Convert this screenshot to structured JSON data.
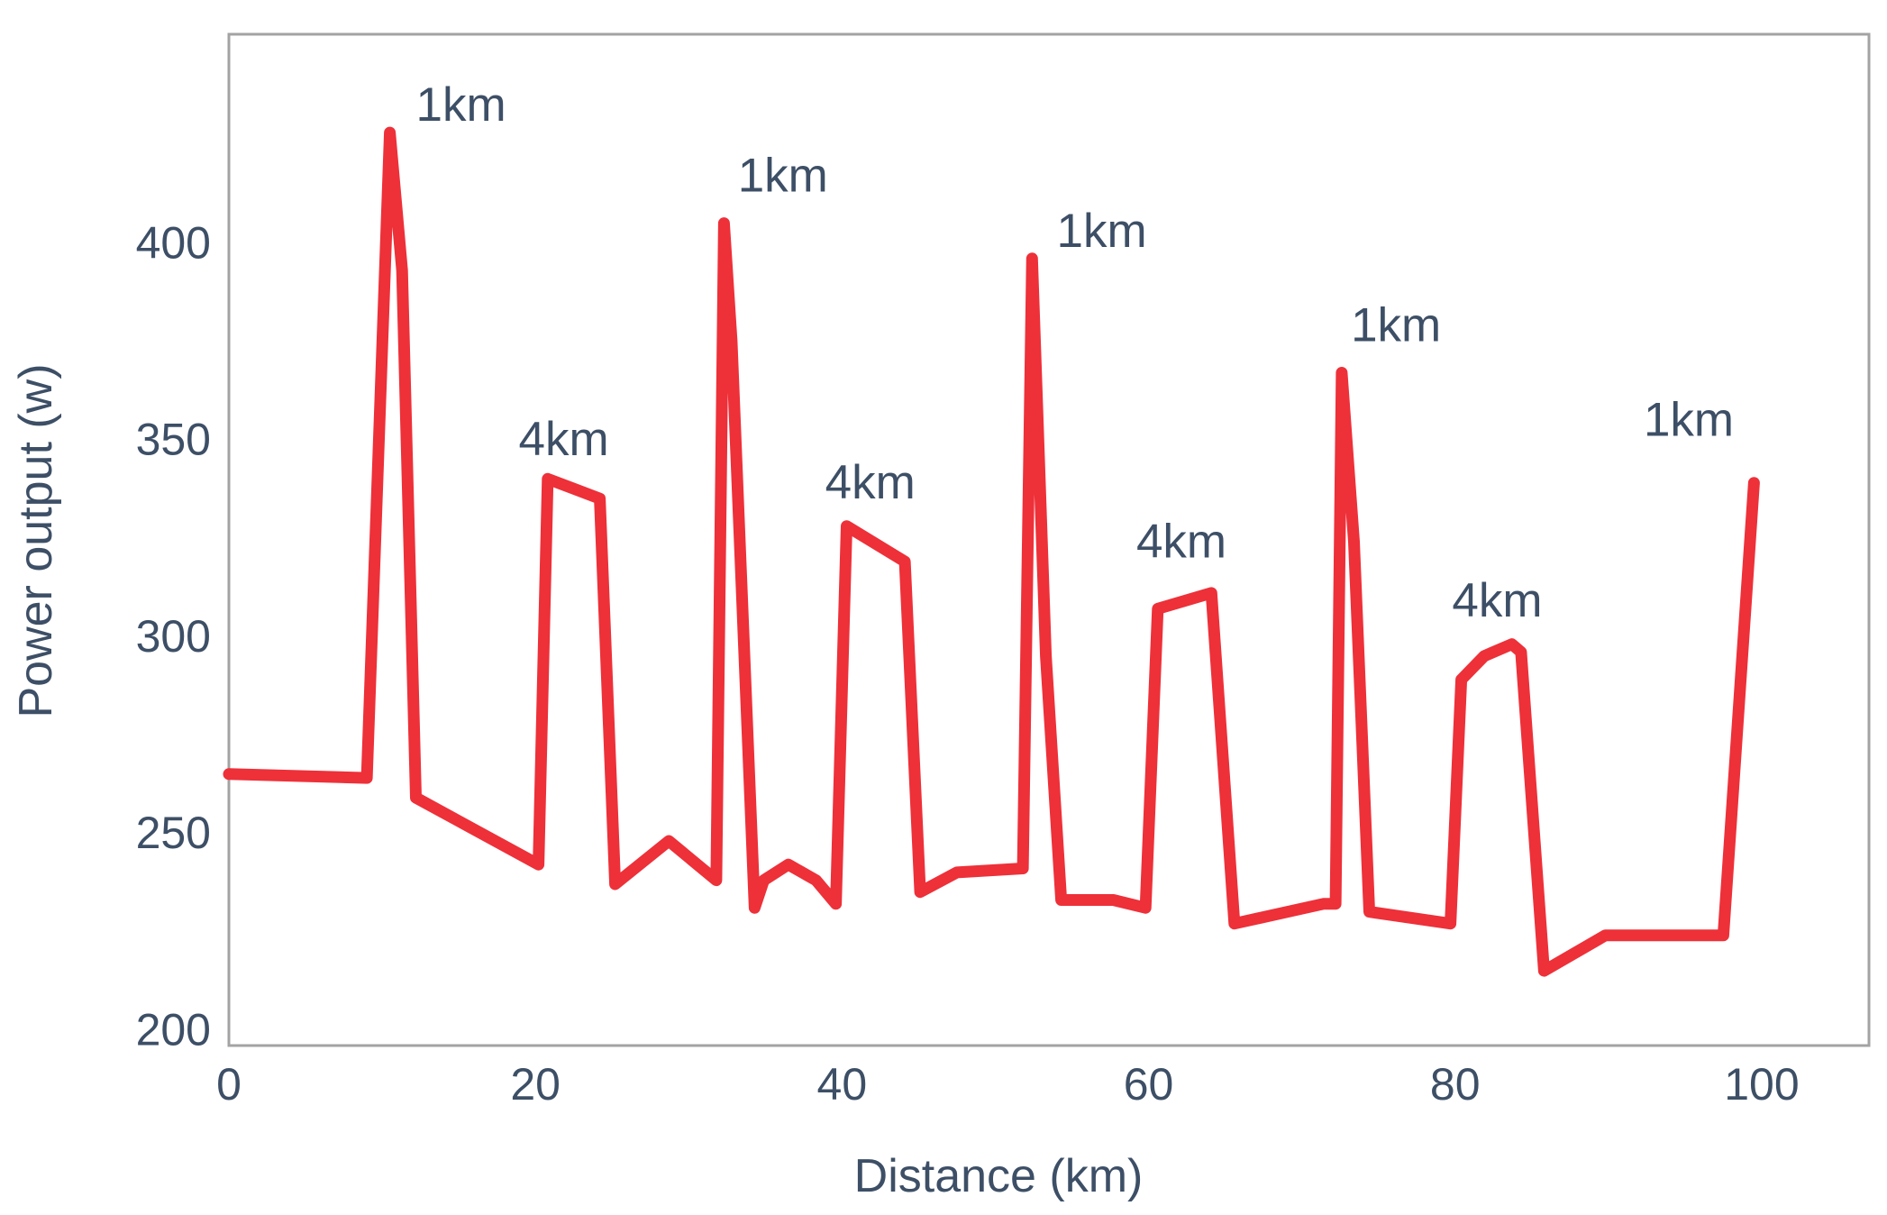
{
  "chart_data": {
    "type": "line",
    "xlabel": "Distance (km)",
    "ylabel": "Power output (w)",
    "xlim": [
      0,
      107
    ],
    "ylim": [
      196,
      453
    ],
    "xticks": [
      "0",
      "20",
      "40",
      "60",
      "80",
      "100"
    ],
    "yticks": [
      "200",
      "250",
      "300",
      "350",
      "400"
    ],
    "grid": false,
    "colors": {
      "line": "#ee3039",
      "text": "#3d4f66",
      "frame": "#a3a3a3"
    },
    "series": [
      {
        "x": [
          0,
          9,
          10.5,
          11.3,
          12.2,
          20.2,
          20.8,
          24.2,
          25.2,
          28.7,
          31.8,
          32.3,
          32.8,
          34.3,
          34.9,
          36.5,
          38.3,
          39.6,
          40.3,
          44.1,
          45.1,
          47.5,
          51.8,
          52.4,
          53.3,
          54.3,
          57.7,
          59.8,
          60.6,
          64.1,
          65.6,
          71.4,
          72.2,
          72.6,
          73.4,
          74.4,
          79.7,
          80.4,
          81.9,
          83.7,
          84.3,
          85.8,
          89.8,
          97.5,
          99.5
        ],
        "y": [
          265,
          264,
          428,
          393,
          259,
          242,
          340,
          335,
          237,
          248,
          238,
          405,
          375,
          231,
          238,
          242,
          238,
          232,
          328,
          319,
          235,
          240,
          241,
          396,
          295,
          233,
          233,
          231,
          307,
          311,
          227,
          232,
          232,
          367,
          324,
          230,
          227,
          289,
          295,
          298,
          296,
          215,
          224,
          224,
          339
        ]
      }
    ],
    "annotations": [
      {
        "text": "1km",
        "x": 12.2,
        "y": 431
      },
      {
        "text": "4km",
        "x": 18.9,
        "y": 346
      },
      {
        "text": "1km",
        "x": 33.2,
        "y": 413
      },
      {
        "text": "4km",
        "x": 38.9,
        "y": 335
      },
      {
        "text": "1km",
        "x": 54.0,
        "y": 399
      },
      {
        "text": "4km",
        "x": 59.2,
        "y": 320
      },
      {
        "text": "1km",
        "x": 73.2,
        "y": 375
      },
      {
        "text": "4km",
        "x": 79.8,
        "y": 305
      },
      {
        "text": "1km",
        "x": 92.3,
        "y": 351
      }
    ]
  }
}
